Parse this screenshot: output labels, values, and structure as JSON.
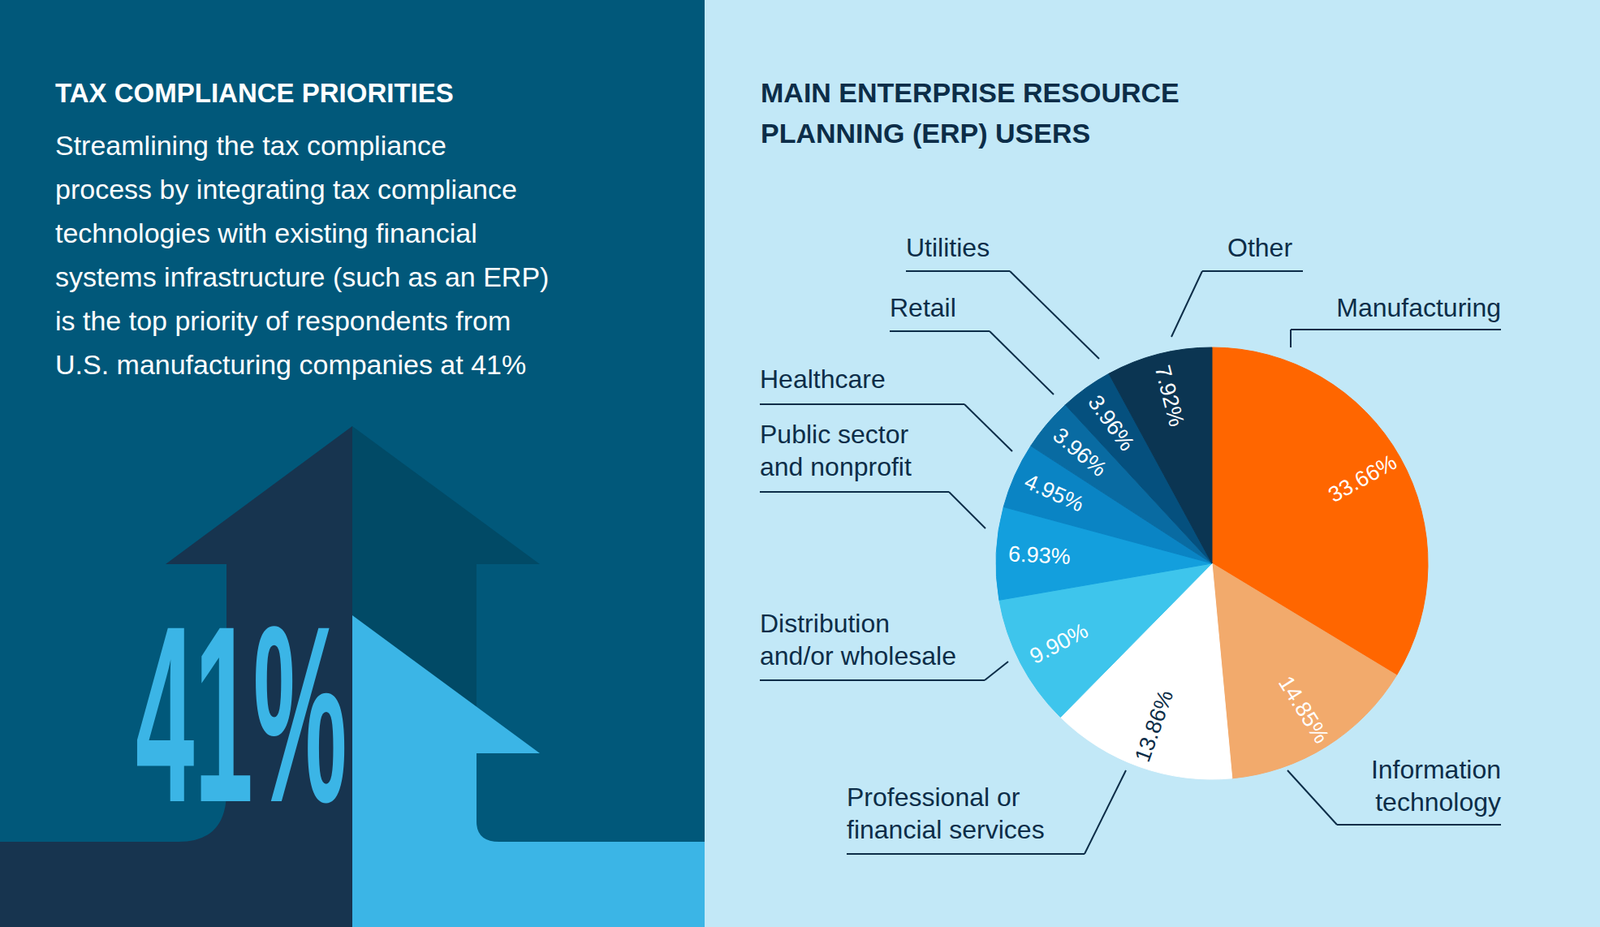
{
  "panel": {
    "title": "TAX COMPLIANCE PRIORITIES",
    "text": "Streamlining the tax compliance\nprocess by integrating tax compliance\ntechnologies with existing financial\nsystems infrastructure (such as an ERP)\nis the top priority of respondents from\nU.S. manufacturing companies at 41%",
    "highlight": "41%"
  },
  "chart_data": {
    "type": "pie",
    "title": "MAIN ENTERPRISE RESOURCE\nPLANNING (ERP) USERS",
    "categories": [
      "Manufacturing",
      "Information\ntechnology",
      "Professional or\nfinancial services",
      "Distribution\nand/or wholesale",
      "Public sector\nand nonprofit",
      "Healthcare",
      "Retail",
      "Utilities",
      "Other"
    ],
    "values": [
      33.66,
      14.85,
      13.86,
      9.9,
      6.93,
      4.95,
      3.96,
      3.96,
      7.92
    ],
    "value_labels": [
      "33.66%",
      "14.85%",
      "13.86%",
      "9.90%",
      "6.93%",
      "4.95%",
      "3.96%",
      "3.96%",
      "7.92%"
    ],
    "colors": [
      "#ff6600",
      "#f2aa6c",
      "#ffffff",
      "#3ec5ec",
      "#139fdd",
      "#0a84c4",
      "#096ba2",
      "#05507e",
      "#0b3552"
    ],
    "data_labels": true
  }
}
